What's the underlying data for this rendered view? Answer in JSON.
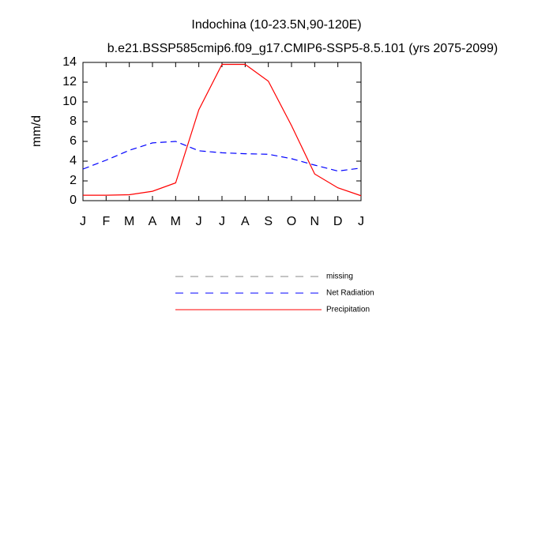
{
  "chart_data": {
    "type": "line",
    "title": "Indochina (10-23.5N,90-120E)",
    "subtitle": "b.e21.BSSP585cmip6.f09_g17.CMIP6-SSP5-8.5.101 (yrs 2075-2099)",
    "y_label": "mm/d",
    "categories": [
      "J",
      "F",
      "M",
      "A",
      "M",
      "J",
      "J",
      "A",
      "S",
      "O",
      "N",
      "D",
      "J"
    ],
    "ylim": [
      0,
      14
    ],
    "yticks": [
      0,
      2,
      4,
      6,
      8,
      10,
      12,
      14
    ],
    "series": [
      {
        "name": "missing",
        "color": "#888888",
        "dash": true,
        "values": [
          null,
          null,
          null,
          null,
          null,
          null,
          null,
          null,
          null,
          null,
          null,
          null,
          null
        ]
      },
      {
        "name": "Net Radiation",
        "color": "#0000ff",
        "dash": true,
        "values": [
          3.2,
          4.1,
          5.1,
          5.85,
          6.0,
          5.05,
          4.85,
          4.75,
          4.7,
          4.25,
          3.6,
          3.0,
          3.3
        ]
      },
      {
        "name": "Precipitation",
        "color": "#ff0000",
        "dash": false,
        "values": [
          0.55,
          0.55,
          0.6,
          0.95,
          1.8,
          9.2,
          13.8,
          13.8,
          12.1,
          7.6,
          2.7,
          1.3,
          0.5
        ]
      }
    ]
  }
}
